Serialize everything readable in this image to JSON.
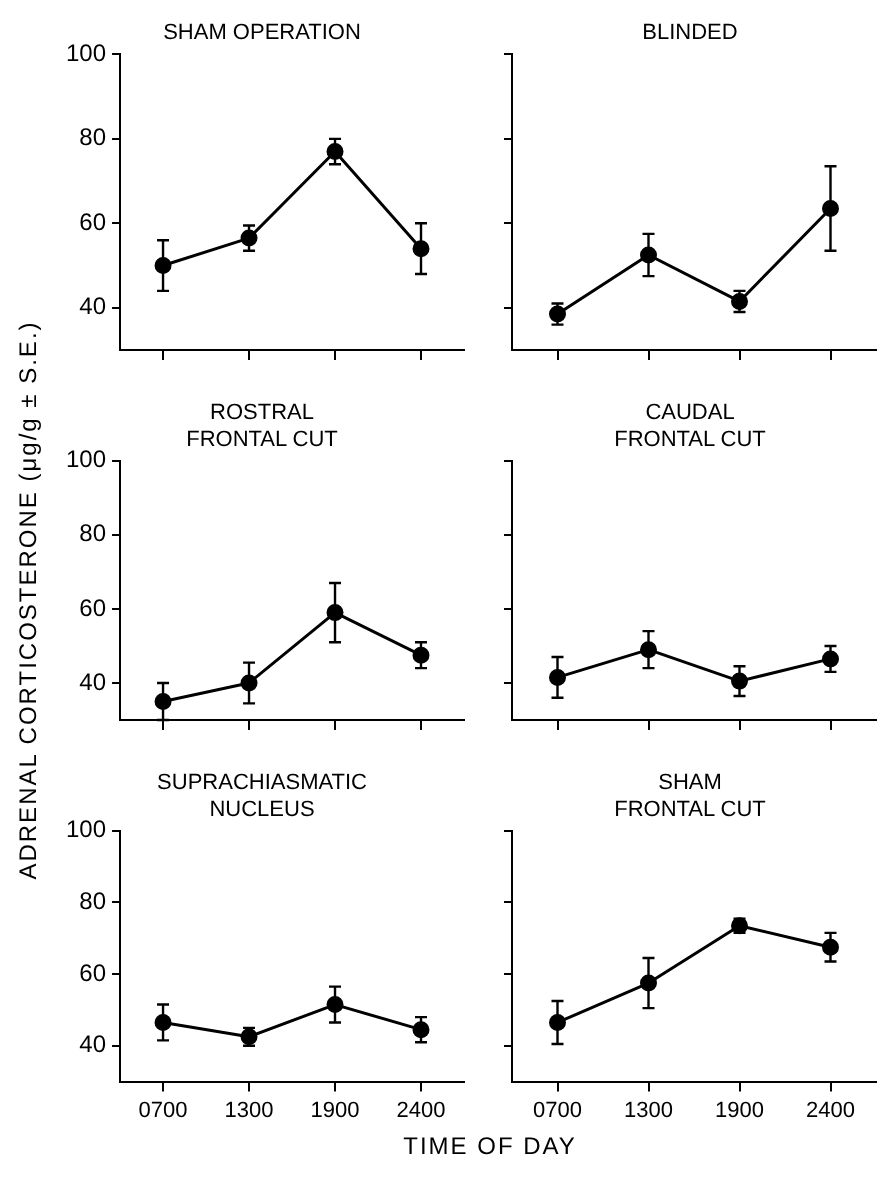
{
  "chart_data": [
    {
      "type": "line",
      "title": "SHAM OPERATION",
      "categories": [
        "0700",
        "1300",
        "1900",
        "2400"
      ],
      "series": [
        {
          "color": "#000000",
          "values": [
            50,
            56.5,
            77,
            54
          ],
          "errors": [
            6,
            3,
            3,
            6
          ]
        }
      ],
      "ylim": [
        30,
        100
      ],
      "yticks": [
        40,
        60,
        80,
        100
      ],
      "tick_labels": "y",
      "marker": "circle",
      "grid": false
    },
    {
      "type": "line",
      "title": "BLINDED",
      "categories": [
        "0700",
        "1300",
        "1900",
        "2400"
      ],
      "series": [
        {
          "color": "#000000",
          "values": [
            38.5,
            52.5,
            41.5,
            63.5
          ],
          "errors": [
            2.5,
            5,
            2.5,
            10
          ]
        }
      ],
      "ylim": [
        30,
        100
      ],
      "yticks": [
        {
          "value": 40,
          "label": null
        },
        {
          "value": 60,
          "label": null
        },
        {
          "value": 80,
          "label": null
        },
        {
          "value": 100,
          "label": null
        }
      ],
      "tick_labels": false,
      "marker": "circle",
      "grid": false
    },
    {
      "type": "line",
      "title": "ROSTRAL\nFRONTAL CUT",
      "ylabel": "ADRENAL CORTICOSTERONE (μg/g ± S.E.)",
      "categories": [
        "0700",
        "1300",
        "1900",
        "2400"
      ],
      "series": [
        {
          "color": "#000000",
          "values": [
            35,
            40,
            59,
            47.5
          ],
          "errors": [
            5,
            5.5,
            8,
            3.5
          ]
        }
      ],
      "ylim": [
        30,
        100
      ],
      "yticks": [
        40,
        60,
        80,
        100
      ],
      "tick_labels": "y",
      "marker": "circle",
      "grid": false
    },
    {
      "type": "line",
      "title": "CAUDAL\nFRONTAL CUT",
      "categories": [
        "0700",
        "1300",
        "1900",
        "2400"
      ],
      "series": [
        {
          "color": "#000000",
          "values": [
            41.5,
            49,
            40.5,
            46.5
          ],
          "errors": [
            5.5,
            5,
            4,
            3.5
          ]
        }
      ],
      "ylim": [
        30,
        100
      ],
      "yticks": [
        {
          "value": 40,
          "label": null
        },
        {
          "value": 60,
          "label": null
        },
        {
          "value": 80,
          "label": null
        },
        {
          "value": 100,
          "label": null
        }
      ],
      "tick_labels": false,
      "marker": "circle",
      "grid": false
    },
    {
      "type": "line",
      "title": "SUPRACHIASMATIC\nNUCLEUS",
      "xlabel": "TIME OF DAY",
      "categories": [
        "0700",
        "1300",
        "1900",
        "2400"
      ],
      "series": [
        {
          "color": "#000000",
          "values": [
            46.5,
            42.5,
            51.5,
            44.5
          ],
          "errors": [
            5,
            2.5,
            5,
            3.5
          ]
        }
      ],
      "ylim": [
        30,
        100
      ],
      "yticks": [
        40,
        60,
        80,
        100
      ],
      "marker": "circle",
      "grid": false
    },
    {
      "type": "line",
      "title": "SHAM\nFRONTAL CUT",
      "categories": [
        "0700",
        "1300",
        "1900",
        "2400"
      ],
      "series": [
        {
          "color": "#000000",
          "values": [
            46.5,
            57.5,
            73.5,
            67.5
          ],
          "errors": [
            6,
            7,
            2,
            4
          ]
        }
      ],
      "ylim": [
        30,
        100
      ],
      "yticks": [
        {
          "value": 40,
          "label": null
        },
        {
          "value": 60,
          "label": null
        },
        {
          "value": 80,
          "label": null
        },
        {
          "value": 100,
          "label": null
        }
      ],
      "tick_labels": "x",
      "marker": "circle",
      "grid": false
    }
  ]
}
